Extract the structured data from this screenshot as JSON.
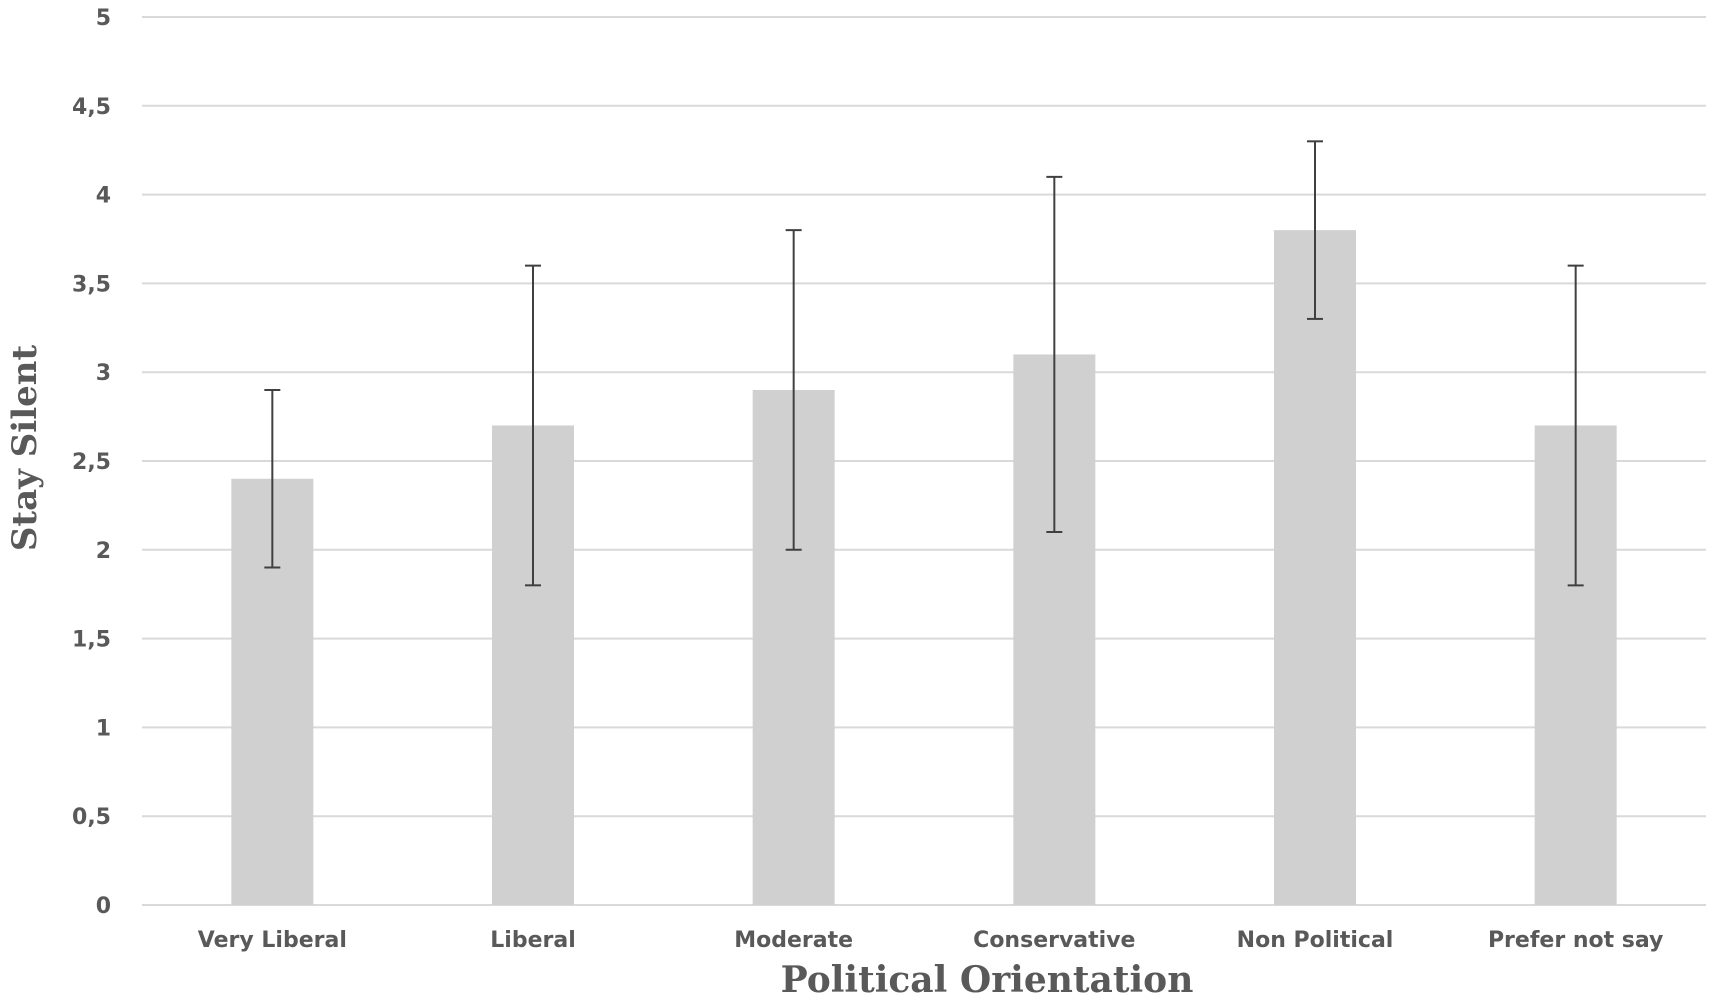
{
  "chart_data": {
    "type": "bar",
    "title": "",
    "xlabel": "Political Orientation",
    "ylabel": "Stay Silent",
    "categories": [
      "Very Liberal",
      "Liberal",
      "Moderate",
      "Conservative",
      "Non Political",
      "Prefer not say"
    ],
    "values": [
      2.4,
      2.7,
      2.9,
      3.1,
      3.8,
      2.7
    ],
    "error_low": [
      1.9,
      1.8,
      2.0,
      2.1,
      3.3,
      1.8
    ],
    "error_high": [
      2.9,
      3.6,
      3.8,
      4.1,
      4.3,
      3.6
    ],
    "ylim": [
      0,
      5
    ],
    "y_ticks": [
      0,
      0.5,
      1,
      1.5,
      2,
      2.5,
      3,
      3.5,
      4,
      4.5,
      5
    ],
    "y_tick_labels": [
      "0",
      "0,5",
      "1",
      "1,5",
      "2",
      "2,5",
      "3",
      "3,5",
      "4",
      "4,5",
      "5"
    ],
    "grid": true,
    "legend": "none",
    "colors": {
      "bar": "#d0d0d0",
      "error_bar": "#404040",
      "grid": "#d9d9d9",
      "text": "#595959"
    }
  }
}
